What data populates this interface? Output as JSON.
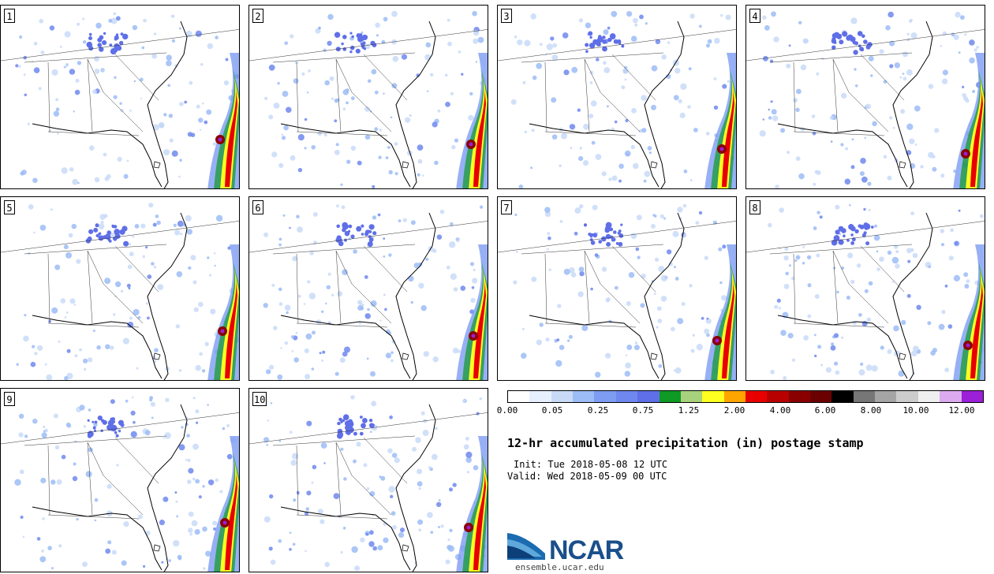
{
  "panels": [
    {
      "label": "1"
    },
    {
      "label": "2"
    },
    {
      "label": "3"
    },
    {
      "label": "4"
    },
    {
      "label": "5"
    },
    {
      "label": "6"
    },
    {
      "label": "7"
    },
    {
      "label": "8"
    },
    {
      "label": "9"
    },
    {
      "label": "10"
    }
  ],
  "colorbar": {
    "colors": [
      "#ffffff",
      "#e6f0ff",
      "#c9daf8",
      "#9cbcf6",
      "#7d9cf2",
      "#6e88ef",
      "#5f6fe8",
      "#0e9a24",
      "#a8d17d",
      "#ffff20",
      "#ffa500",
      "#e80000",
      "#b80000",
      "#8a0000",
      "#6a0000",
      "#000000",
      "#777777",
      "#a5a5a5",
      "#cccccc",
      "#efefef",
      "#dcaaee",
      "#9b20d8"
    ],
    "ticks": [
      "0.00",
      "0.05",
      "0.25",
      "0.75",
      "1.25",
      "2.00",
      "4.00",
      "6.00",
      "8.00",
      "10.00",
      "12.00"
    ]
  },
  "title": "12-hr accumulated precipitation (in) postage stamp",
  "init": "Init: Tue 2018-05-08 12 UTC",
  "valid": "Valid: Wed 2018-05-09 00 UTC",
  "logo": {
    "text": "NCAR",
    "url": "ensemble.ucar.edu",
    "color": "#1a4f8b"
  }
}
